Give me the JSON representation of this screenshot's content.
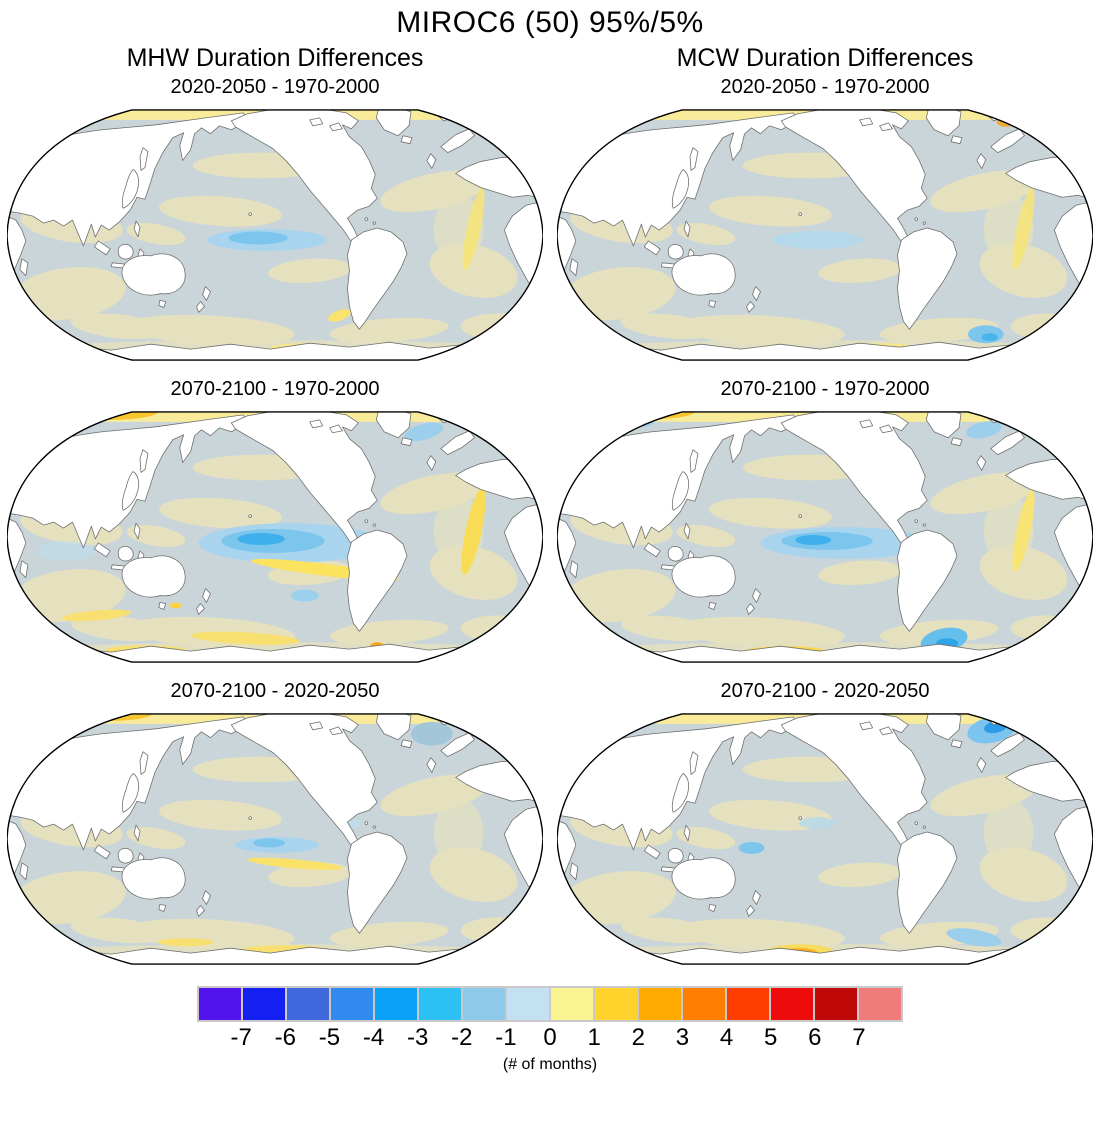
{
  "title": "MIROC6 (50) 95%/5%",
  "columns": [
    {
      "label": "MHW Duration Differences"
    },
    {
      "label": "MCW Duration Differences"
    }
  ],
  "panels": [
    {
      "column": "MHW",
      "subtitle": "2020-2050 - 1970-2000"
    },
    {
      "column": "MCW",
      "subtitle": "2020-2050 - 1970-2000"
    },
    {
      "column": "MHW",
      "subtitle": "2070-2100 - 1970-2000"
    },
    {
      "column": "MCW",
      "subtitle": "2070-2100 - 1970-2000"
    },
    {
      "column": "MHW",
      "subtitle": "2070-2100 - 2020-2050"
    },
    {
      "column": "MCW",
      "subtitle": "2070-2100 - 2020-2050"
    }
  ],
  "colorbar": {
    "label": "(# of months)",
    "tick_labels": [
      "-7",
      "-6",
      "-5",
      "-4",
      "-3",
      "-2",
      "-1",
      "0",
      "1",
      "2",
      "3",
      "4",
      "5",
      "6",
      "7"
    ],
    "colors": [
      "#5414EE",
      "#1420F2",
      "#4169DE",
      "#3289EE",
      "#0AA2F8",
      "#2DC0F2",
      "#8FC9EA",
      "#C3E1F2",
      "#FCF393",
      "#FFD32B",
      "#FFAB01",
      "#FF7D01",
      "#FF3D01",
      "#EE0B0B",
      "#C00A0A",
      "#EF7B7B"
    ]
  },
  "chart_data": {
    "type": "heatmap",
    "title": "MIROC6 (50) 95%/5%",
    "subtitle_columns": [
      "MHW Duration Differences",
      "MCW Duration Differences"
    ],
    "projection": "Robinson, Pacific-centered (180°)",
    "units": "# of months",
    "colorbar": {
      "ticks": [
        -7,
        -6,
        -5,
        -4,
        -3,
        -2,
        -1,
        0,
        1,
        2,
        3,
        4,
        5,
        6,
        7
      ],
      "n_colors": 16,
      "range_months": [
        -8,
        8
      ],
      "colors": [
        "#5414EE",
        "#1420F2",
        "#4169DE",
        "#3289EE",
        "#0AA2F8",
        "#2DC0F2",
        "#8FC9EA",
        "#C3E1F2",
        "#FCF393",
        "#FFD32B",
        "#FFAB01",
        "#FF7D01",
        "#FF3D01",
        "#EE0B0B",
        "#C00A0A",
        "#EF7B7B"
      ]
    },
    "panels": [
      {
        "variable": "MHW duration difference",
        "periods": "2020-2050 minus 1970-2000",
        "dominant_range_months": [
          -1,
          1
        ],
        "features": "Arctic band ~ +1; equatorial central Pacific patch -2 to -1; scattered 0 to +1 (khaki) mid-latitude ocean"
      },
      {
        "variable": "MCW duration difference",
        "periods": "2020-2050 minus 1970-2000",
        "dominant_range_months": [
          -1,
          1
        ],
        "features": "Arctic band ~ +1; weak equatorial Pacific -1 patch; small -2 patch near Antarctica (SE Pacific); khaki 0 to +1 patches"
      },
      {
        "variable": "MHW duration difference",
        "periods": "2070-2100 minus 1970-2000",
        "dominant_range_months": [
          -2,
          2
        ],
        "features": "Arctic +1 to +3 (orange NW); strong equatorial Pacific tongue -3 to -1; +1 to +2 yellow streaks in S Pacific, S Atlantic and Southern Ocean"
      },
      {
        "variable": "MCW duration difference",
        "periods": "2070-2100 minus 1970-2000",
        "dominant_range_months": [
          -2,
          2
        ],
        "features": "Arctic +1 to +2; equatorial Pacific tongue -3 to -1; bright -3 blob near Antarctica (Atlantic sector); +2 band along Antarctic coast"
      },
      {
        "variable": "MHW duration difference",
        "periods": "2070-2100 minus 2020-2050",
        "dominant_range_months": [
          -1,
          1
        ],
        "features": "Arctic +1 (orange NW); weak equatorial Pacific -1 patch with +1 streak; gray-blue subpolar N Atlantic patch"
      },
      {
        "variable": "MCW duration difference",
        "periods": "2070-2100 minus 2020-2050",
        "dominant_range_months": [
          -1,
          1
        ],
        "features": "Bright -3 to -2 blob SE of Greenland; +3 orange patch on Antarctic coast (center); small -1 patches in Pacific"
      }
    ]
  }
}
